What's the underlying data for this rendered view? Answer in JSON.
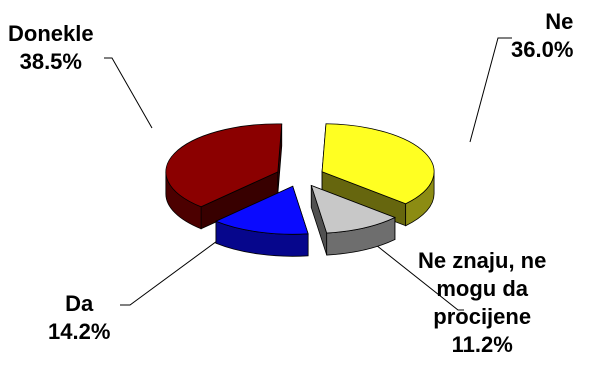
{
  "chart_data": {
    "type": "pie",
    "style": "3d-exploded",
    "title": "",
    "legend": "none",
    "slices": [
      {
        "name": "Ne",
        "value": 36.0,
        "label": "36.0%",
        "color": "#FFFF22"
      },
      {
        "name": "Ne znaju, ne mogu da procijene",
        "value": 11.2,
        "label": "11.2%",
        "color": "#C8C8C8"
      },
      {
        "name": "Da",
        "value": 14.2,
        "label": "14.2%",
        "color": "#0A0AFF"
      },
      {
        "name": "Donekle",
        "value": 38.5,
        "label": "38.5%",
        "color": "#8B0000"
      }
    ],
    "label_lines": {
      "ne_znaju": [
        "Ne znaju, ne",
        "mogu da",
        "procijene"
      ]
    }
  }
}
